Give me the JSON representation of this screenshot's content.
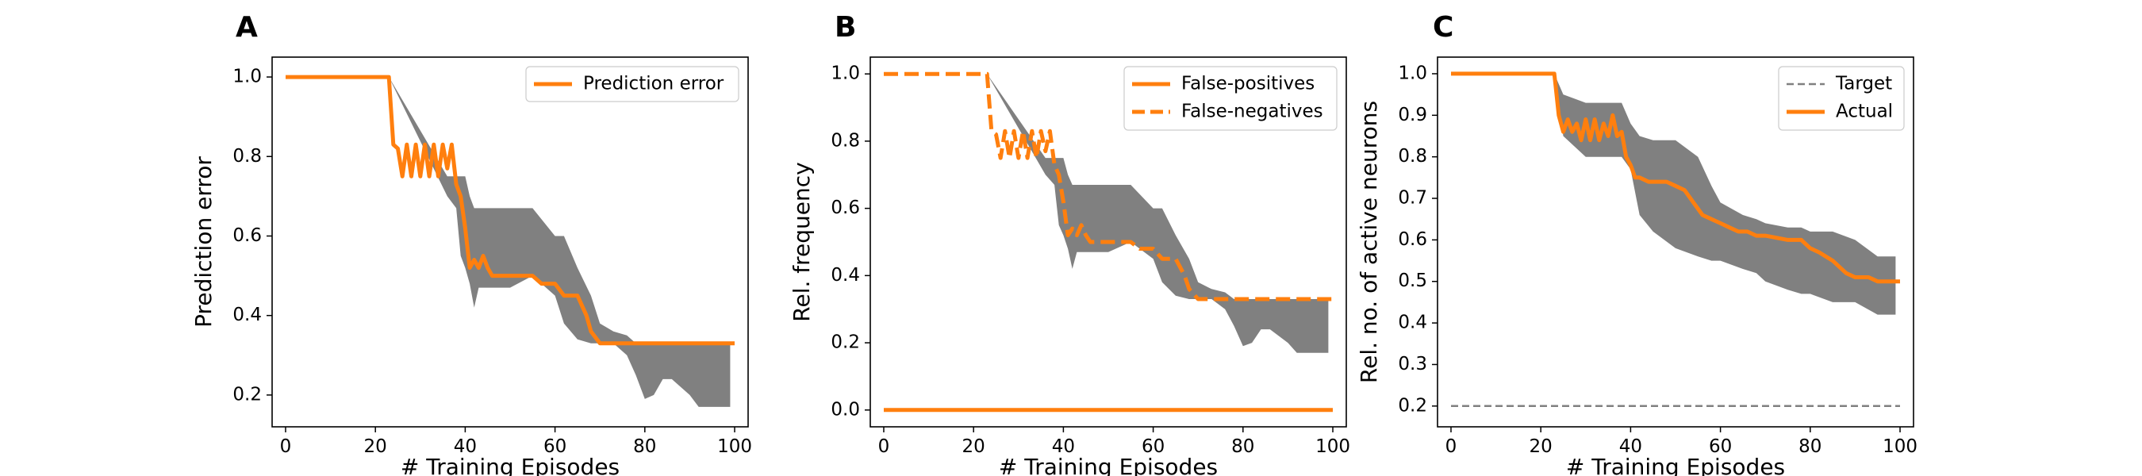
{
  "figure": {
    "panels": [
      "A",
      "B",
      "C"
    ]
  },
  "chart_data": [
    {
      "panel": "A",
      "type": "line",
      "xlabel": "# Training Episodes",
      "ylabel": "Prediction error",
      "xlim": [
        -3,
        103
      ],
      "ylim": [
        0.12,
        1.05
      ],
      "xticks": [
        0,
        20,
        40,
        60,
        80,
        100
      ],
      "yticks": [
        0.2,
        0.4,
        0.6,
        0.8,
        1.0
      ],
      "legend_position": "upper right",
      "band": {
        "color": "#808080",
        "x": [
          23,
          36,
          38,
          39,
          40,
          41,
          42,
          43,
          45,
          50,
          55,
          60,
          62,
          65,
          68,
          70,
          73,
          76,
          78,
          80,
          82,
          84,
          86,
          88,
          90,
          92,
          94,
          96,
          98,
          99
        ],
        "upper": [
          1.0,
          0.75,
          0.75,
          0.75,
          0.75,
          0.7,
          0.67,
          0.67,
          0.67,
          0.67,
          0.67,
          0.6,
          0.6,
          0.52,
          0.45,
          0.38,
          0.36,
          0.35,
          0.33,
          0.33,
          0.33,
          0.33,
          0.33,
          0.33,
          0.33,
          0.33,
          0.33,
          0.33,
          0.33,
          0.33
        ],
        "lower": [
          1.0,
          0.7,
          0.67,
          0.55,
          0.52,
          0.48,
          0.42,
          0.47,
          0.47,
          0.47,
          0.5,
          0.45,
          0.38,
          0.34,
          0.33,
          0.33,
          0.33,
          0.3,
          0.25,
          0.19,
          0.2,
          0.24,
          0.24,
          0.22,
          0.2,
          0.17,
          0.17,
          0.17,
          0.17,
          0.17
        ]
      },
      "series": [
        {
          "name": "Prediction error",
          "color": "#ff7f0e",
          "style": "solid",
          "x": [
            0,
            23,
            24,
            25,
            26,
            27,
            28,
            29,
            30,
            31,
            32,
            33,
            34,
            35,
            36,
            37,
            38,
            39,
            40,
            41,
            42,
            43,
            44,
            45,
            46,
            48,
            55,
            57,
            60,
            62,
            65,
            67,
            68,
            70,
            75,
            80,
            85,
            90,
            95,
            100
          ],
          "y": [
            1.0,
            1.0,
            0.83,
            0.82,
            0.75,
            0.83,
            0.75,
            0.83,
            0.75,
            0.83,
            0.75,
            0.83,
            0.75,
            0.83,
            0.77,
            0.83,
            0.73,
            0.7,
            0.62,
            0.52,
            0.54,
            0.52,
            0.55,
            0.52,
            0.5,
            0.5,
            0.5,
            0.48,
            0.48,
            0.45,
            0.45,
            0.4,
            0.36,
            0.33,
            0.33,
            0.33,
            0.33,
            0.33,
            0.33,
            0.33
          ]
        }
      ]
    },
    {
      "panel": "B",
      "type": "line",
      "xlabel": "# Training Episodes",
      "ylabel": "Rel. frequency",
      "xlim": [
        -3,
        103
      ],
      "ylim": [
        -0.05,
        1.05
      ],
      "xticks": [
        0,
        20,
        40,
        60,
        80,
        100
      ],
      "yticks": [
        0.0,
        0.2,
        0.4,
        0.6,
        0.8,
        1.0
      ],
      "legend_position": "upper right",
      "band": {
        "color": "#808080",
        "x": [
          23,
          36,
          38,
          39,
          40,
          41,
          42,
          43,
          45,
          50,
          55,
          60,
          62,
          65,
          68,
          70,
          73,
          76,
          78,
          80,
          82,
          84,
          86,
          88,
          90,
          92,
          94,
          96,
          98,
          99
        ],
        "upper": [
          1.0,
          0.75,
          0.75,
          0.75,
          0.75,
          0.7,
          0.67,
          0.67,
          0.67,
          0.67,
          0.67,
          0.6,
          0.6,
          0.52,
          0.45,
          0.38,
          0.36,
          0.35,
          0.33,
          0.33,
          0.33,
          0.33,
          0.33,
          0.33,
          0.33,
          0.33,
          0.33,
          0.33,
          0.33,
          0.33
        ],
        "lower": [
          1.0,
          0.7,
          0.67,
          0.55,
          0.52,
          0.48,
          0.42,
          0.47,
          0.47,
          0.47,
          0.5,
          0.45,
          0.38,
          0.34,
          0.33,
          0.33,
          0.33,
          0.3,
          0.25,
          0.19,
          0.2,
          0.24,
          0.24,
          0.22,
          0.2,
          0.17,
          0.17,
          0.17,
          0.17,
          0.17
        ]
      },
      "series": [
        {
          "name": "False-positives",
          "color": "#ff7f0e",
          "style": "solid",
          "x": [
            0,
            100
          ],
          "y": [
            0.0,
            0.0
          ]
        },
        {
          "name": "False-negatives",
          "color": "#ff7f0e",
          "style": "dashed",
          "x": [
            0,
            23,
            24,
            25,
            26,
            27,
            28,
            29,
            30,
            31,
            32,
            33,
            34,
            35,
            36,
            37,
            38,
            39,
            40,
            41,
            42,
            43,
            44,
            45,
            46,
            48,
            55,
            57,
            60,
            62,
            65,
            67,
            68,
            70,
            75,
            80,
            85,
            90,
            95,
            100
          ],
          "y": [
            1.0,
            1.0,
            0.83,
            0.82,
            0.75,
            0.83,
            0.75,
            0.83,
            0.75,
            0.83,
            0.75,
            0.83,
            0.75,
            0.83,
            0.77,
            0.83,
            0.73,
            0.7,
            0.62,
            0.52,
            0.54,
            0.52,
            0.55,
            0.52,
            0.5,
            0.5,
            0.5,
            0.48,
            0.48,
            0.45,
            0.45,
            0.4,
            0.36,
            0.33,
            0.33,
            0.33,
            0.33,
            0.33,
            0.33,
            0.33
          ]
        }
      ]
    },
    {
      "panel": "C",
      "type": "line",
      "xlabel": "# Training Episodes",
      "ylabel": "Rel. no. of active neurons",
      "xlim": [
        -3,
        103
      ],
      "ylim": [
        0.15,
        1.04
      ],
      "xticks": [
        0,
        20,
        40,
        60,
        80,
        100
      ],
      "yticks": [
        0.2,
        0.3,
        0.4,
        0.5,
        0.6,
        0.7,
        0.8,
        0.9,
        1.0
      ],
      "legend_position": "upper right",
      "band": {
        "color": "#808080",
        "x": [
          23,
          25,
          30,
          35,
          38,
          40,
          42,
          45,
          50,
          55,
          58,
          60,
          65,
          68,
          70,
          75,
          78,
          80,
          85,
          90,
          95,
          99
        ],
        "upper": [
          1.0,
          0.95,
          0.93,
          0.93,
          0.93,
          0.88,
          0.85,
          0.84,
          0.84,
          0.8,
          0.73,
          0.69,
          0.66,
          0.65,
          0.64,
          0.63,
          0.63,
          0.62,
          0.62,
          0.6,
          0.56,
          0.56
        ],
        "lower": [
          1.0,
          0.85,
          0.8,
          0.8,
          0.8,
          0.77,
          0.66,
          0.62,
          0.58,
          0.56,
          0.55,
          0.55,
          0.53,
          0.52,
          0.5,
          0.48,
          0.47,
          0.47,
          0.45,
          0.45,
          0.42,
          0.42
        ]
      },
      "series": [
        {
          "name": "Target",
          "color": "#808080",
          "style": "dashed",
          "x": [
            0,
            100
          ],
          "y": [
            0.2,
            0.2
          ]
        },
        {
          "name": "Actual",
          "color": "#ff7f0e",
          "style": "solid",
          "x": [
            0,
            23,
            24,
            25,
            26,
            27,
            28,
            29,
            30,
            31,
            32,
            33,
            34,
            35,
            36,
            37,
            38,
            39,
            40,
            41,
            42,
            44,
            48,
            50,
            52,
            54,
            56,
            58,
            60,
            62,
            64,
            66,
            68,
            70,
            75,
            78,
            80,
            82,
            85,
            88,
            90,
            93,
            95,
            98,
            100
          ],
          "y": [
            1.0,
            1.0,
            0.9,
            0.86,
            0.89,
            0.86,
            0.88,
            0.84,
            0.89,
            0.84,
            0.89,
            0.84,
            0.88,
            0.85,
            0.9,
            0.85,
            0.86,
            0.8,
            0.78,
            0.75,
            0.75,
            0.74,
            0.74,
            0.73,
            0.72,
            0.69,
            0.66,
            0.65,
            0.64,
            0.63,
            0.62,
            0.62,
            0.61,
            0.61,
            0.6,
            0.6,
            0.58,
            0.57,
            0.55,
            0.52,
            0.51,
            0.51,
            0.5,
            0.5,
            0.5
          ]
        }
      ]
    }
  ]
}
